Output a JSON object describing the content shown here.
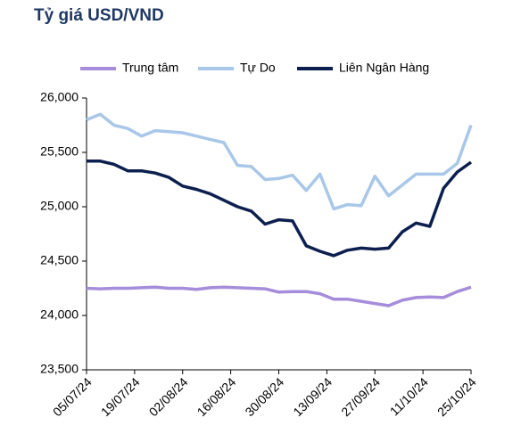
{
  "chart_data": {
    "type": "line",
    "title": "Tỷ giá USD/VND",
    "x": [
      "05/07/24",
      "09/07/24",
      "13/07/24",
      "17/07/24",
      "21/07/24",
      "25/07/24",
      "29/07/24",
      "02/08/24",
      "06/08/24",
      "10/08/24",
      "14/08/24",
      "18/08/24",
      "22/08/24",
      "26/08/24",
      "30/08/24",
      "03/09/24",
      "07/09/24",
      "11/09/24",
      "15/09/24",
      "19/09/24",
      "23/09/24",
      "27/09/24",
      "01/10/24",
      "05/10/24",
      "09/10/24",
      "13/10/24",
      "17/10/24",
      "21/10/24",
      "25/10/24"
    ],
    "series": [
      {
        "name": "Trung tâm",
        "color": "#a68ddb",
        "values": [
          24250,
          24245,
          24250,
          24250,
          24255,
          24260,
          24250,
          24250,
          24240,
          24255,
          24260,
          24255,
          24250,
          24245,
          24215,
          24220,
          24220,
          24200,
          24150,
          24150,
          24130,
          24110,
          24090,
          24140,
          24165,
          24170,
          24165,
          24220,
          24260
        ]
      },
      {
        "name": "Tự Do",
        "color": "#a9c7e8",
        "values": [
          25800,
          25850,
          25750,
          25720,
          25650,
          25700,
          25690,
          25680,
          25650,
          25620,
          25590,
          25380,
          25370,
          25250,
          25260,
          25290,
          25150,
          25300,
          24980,
          25020,
          25010,
          25280,
          25100,
          25200,
          25300,
          25300,
          25300,
          25400,
          25750
        ]
      },
      {
        "name": "Liên Ngân Hàng",
        "color": "#0c1f4e",
        "values": [
          25420,
          25420,
          25390,
          25330,
          25330,
          25310,
          25270,
          25190,
          25160,
          25120,
          25060,
          25000,
          24960,
          24840,
          24880,
          24870,
          24640,
          24590,
          24550,
          24600,
          24620,
          24610,
          24620,
          24770,
          24850,
          24820,
          25170,
          25320,
          25410
        ]
      }
    ],
    "xlim": [
      "05/07/24",
      "25/10/24"
    ],
    "xticks": [
      "05/07/24",
      "19/07/24",
      "02/08/24",
      "16/08/24",
      "30/08/24",
      "13/09/24",
      "27/09/24",
      "11/10/24",
      "25/10/24"
    ],
    "ylim": [
      23500,
      26000
    ],
    "yticks": [
      {
        "value": 23500,
        "label": "23,500"
      },
      {
        "value": 24000,
        "label": "24,000"
      },
      {
        "value": 24500,
        "label": "24,500"
      },
      {
        "value": 25000,
        "label": "25,000"
      },
      {
        "value": 25500,
        "label": "25,500"
      },
      {
        "value": 26000,
        "label": "26,000"
      }
    ],
    "grid": false,
    "legend": "top"
  }
}
